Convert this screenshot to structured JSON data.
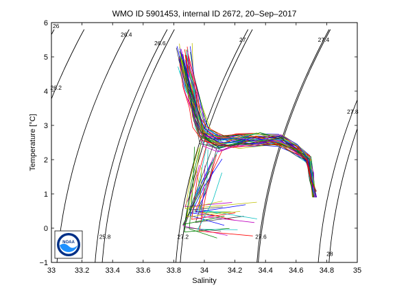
{
  "chart_data": {
    "type": "line",
    "title": "WMO ID 5901453, internal ID 2672, 20–Sep–2017",
    "xlabel": "Salinity",
    "ylabel": "Temperature [°C]",
    "xlim": [
      33,
      35
    ],
    "ylim": [
      -1,
      6
    ],
    "x_ticks": [
      "33",
      "33.2",
      "33.4",
      "33.6",
      "33.8",
      "34",
      "34.2",
      "34.4",
      "34.6",
      "34.8",
      "35"
    ],
    "y_ticks": [
      "−1",
      "0",
      "1",
      "2",
      "3",
      "4",
      "5",
      "6"
    ],
    "grid": false,
    "legend": "none",
    "isopycnals": [
      {
        "label": "25.8",
        "s_at_label": 33.35,
        "t_at_label": -0.25
      },
      {
        "label": "26",
        "s_at_label": 33.03,
        "t_at_label": 5.9
      },
      {
        "label": "26.2",
        "s_at_label": 33.03,
        "t_at_label": 4.1
      },
      {
        "label": "26.4",
        "s_at_label": 33.49,
        "t_at_label": 5.65
      },
      {
        "label": "26.6",
        "s_at_label": 33.71,
        "t_at_label": 5.4
      },
      {
        "label": "27",
        "s_at_label": 34.25,
        "t_at_label": 5.5
      },
      {
        "label": "27.2",
        "s_at_label": 33.86,
        "t_at_label": -0.25
      },
      {
        "label": "27.4",
        "s_at_label": 34.78,
        "t_at_label": 5.5
      },
      {
        "label": "27.6",
        "s_at_label": 34.37,
        "t_at_label": -0.25
      },
      {
        "label": "27.8",
        "s_at_label": 34.97,
        "t_at_label": 3.4
      },
      {
        "label": "28",
        "s_at_label": 34.82,
        "t_at_label": -0.75
      }
    ],
    "profile_shape_points": [
      [
        33.87,
        5.0
      ],
      [
        33.9,
        4.3
      ],
      [
        33.93,
        3.8
      ],
      [
        33.96,
        3.2
      ],
      [
        34.0,
        2.7
      ],
      [
        34.1,
        2.5
      ],
      [
        34.2,
        2.55
      ],
      [
        34.35,
        2.6
      ],
      [
        34.5,
        2.55
      ],
      [
        34.6,
        2.3
      ],
      [
        34.68,
        2.0
      ],
      [
        34.7,
        1.5
      ],
      [
        34.72,
        1.1
      ]
    ],
    "profile_colors": [
      "#0000ff",
      "#008000",
      "#ff0000",
      "#00bfbf",
      "#bf00bf",
      "#bfbf00",
      "#404040"
    ]
  },
  "logo": {
    "text": "NOAA",
    "ring_color": "#003087",
    "wave_color": "#1e90ff"
  }
}
